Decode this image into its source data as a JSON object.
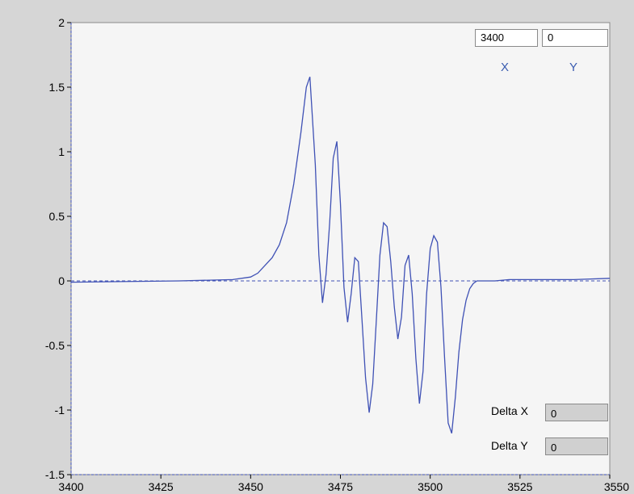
{
  "cursor_readout": {
    "x_value": "3400",
    "y_value": "0",
    "x_caption": "X",
    "y_caption": "Y"
  },
  "delta_readout": {
    "delta_x_label": "Delta X",
    "delta_x_value": "0",
    "delta_y_label": "Delta Y",
    "delta_y_value": "0"
  },
  "colors": {
    "trace": "#3f51b5",
    "plot_bg": "#f5f5f5",
    "frame_bg": "#d6d6d6",
    "caption": "#3a5cb0"
  },
  "chart_data": {
    "type": "line",
    "title": "",
    "xlabel": "",
    "ylabel": "",
    "xlim": [
      3400,
      3550
    ],
    "ylim": [
      -1.5,
      2
    ],
    "x_ticks": [
      "3400",
      "3425",
      "3450",
      "3475",
      "3500",
      "3525",
      "3550"
    ],
    "y_ticks": [
      "2",
      "1.5",
      "1",
      "0.5",
      "0",
      "-0.5",
      "-1",
      "-1.5"
    ],
    "grid": false,
    "zero_line": true,
    "series": [
      {
        "x": [
          3400,
          3430,
          3445,
          3450,
          3452,
          3454,
          3456,
          3458,
          3460,
          3462,
          3464,
          3465.5,
          3466.5,
          3468,
          3469,
          3470,
          3471,
          3472,
          3473,
          3474,
          3475,
          3476,
          3477,
          3478,
          3479,
          3480,
          3481,
          3482,
          3483,
          3484,
          3485,
          3486,
          3487,
          3488,
          3489,
          3490,
          3491,
          3492,
          3493,
          3494,
          3495,
          3496,
          3497,
          3498,
          3499,
          3500,
          3501,
          3502,
          3503,
          3504,
          3505,
          3506,
          3507,
          3508,
          3509,
          3510,
          3511,
          3512,
          3513,
          3515,
          3518,
          3522,
          3530,
          3540,
          3550
        ],
        "y": [
          -0.01,
          0.0,
          0.01,
          0.03,
          0.06,
          0.12,
          0.18,
          0.28,
          0.45,
          0.75,
          1.15,
          1.5,
          1.58,
          0.9,
          0.2,
          -0.17,
          0.05,
          0.45,
          0.95,
          1.08,
          0.6,
          -0.05,
          -0.32,
          -0.1,
          0.18,
          0.15,
          -0.3,
          -0.75,
          -1.02,
          -0.8,
          -0.3,
          0.2,
          0.45,
          0.42,
          0.15,
          -0.2,
          -0.45,
          -0.28,
          0.12,
          0.2,
          -0.1,
          -0.6,
          -0.95,
          -0.7,
          -0.1,
          0.25,
          0.35,
          0.3,
          -0.05,
          -0.6,
          -1.1,
          -1.18,
          -0.9,
          -0.55,
          -0.3,
          -0.15,
          -0.06,
          -0.02,
          0.0,
          0.0,
          0.0,
          0.01,
          0.01,
          0.01,
          0.02
        ]
      }
    ]
  }
}
